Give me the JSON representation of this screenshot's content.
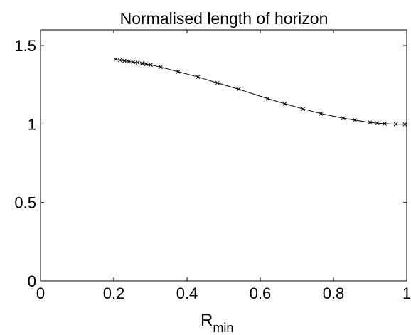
{
  "chart_data": {
    "type": "line",
    "title": "Normalised length of horizon",
    "xlabel": "R",
    "xlabel_subscript": "min",
    "ylabel": "",
    "xlim": [
      0,
      1
    ],
    "ylim": [
      0,
      1.6
    ],
    "xticks": [
      0,
      0.2,
      0.4,
      0.6,
      0.8,
      1
    ],
    "xtick_labels": [
      "0",
      "0.2",
      "0.4",
      "0.6",
      "0.8",
      "1"
    ],
    "yticks": [
      0,
      0.5,
      1,
      1.5
    ],
    "ytick_labels": [
      "0",
      "0.5",
      "1",
      "1.5"
    ],
    "grid": false,
    "line_color": "#000000",
    "marker": "x",
    "series": [
      {
        "x": [
          0.205,
          0.217,
          0.229,
          0.241,
          0.253,
          0.265,
          0.277,
          0.289,
          0.301,
          0.328,
          0.376,
          0.43,
          0.483,
          0.541,
          0.62,
          0.667,
          0.717,
          0.766,
          0.827,
          0.858,
          0.9,
          0.92,
          0.94,
          0.97,
          0.995
        ],
        "values": [
          1.412,
          1.407,
          1.403,
          1.399,
          1.395,
          1.391,
          1.386,
          1.382,
          1.377,
          1.363,
          1.333,
          1.3,
          1.262,
          1.222,
          1.162,
          1.129,
          1.096,
          1.066,
          1.037,
          1.025,
          1.01,
          1.005,
          1.002,
          0.999,
          0.998
        ]
      }
    ]
  }
}
